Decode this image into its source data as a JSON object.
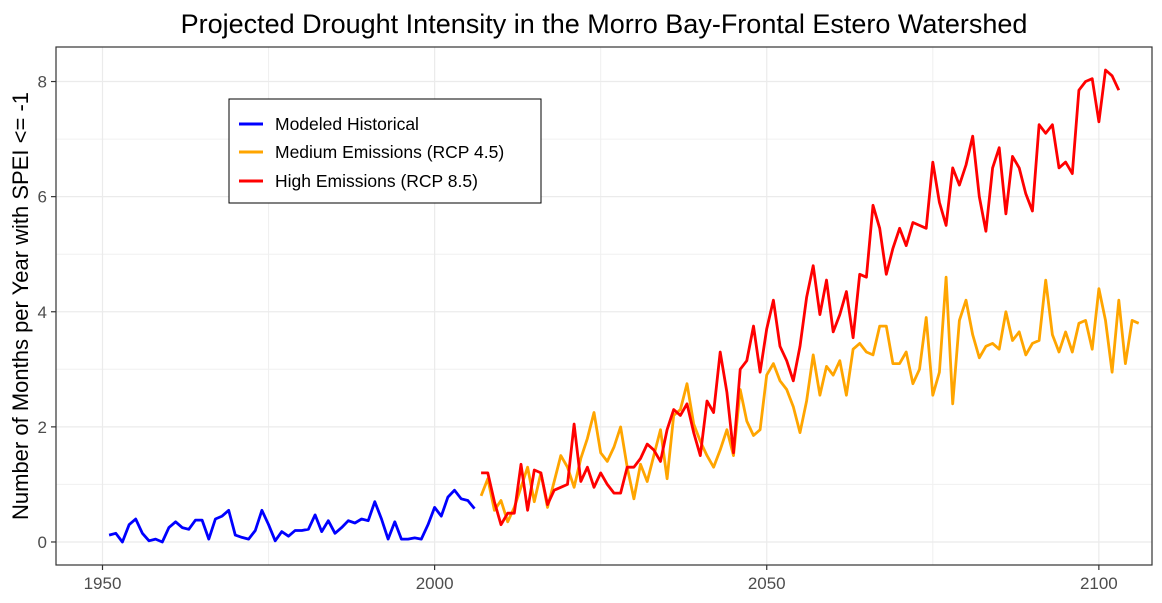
{
  "chart_data": {
    "type": "line",
    "title": "Projected Drought Intensity in the Morro Bay-Frontal Estero Watershed",
    "xlabel": "",
    "ylabel": "Number of Months per Year with SPEI <= -1",
    "xlim": [
      1943,
      2108
    ],
    "ylim": [
      -0.4,
      8.6
    ],
    "x_ticks": [
      1950,
      2000,
      2050,
      2100
    ],
    "y_ticks": [
      0,
      2,
      4,
      6,
      8
    ],
    "grid": true,
    "legend_position": "top-left",
    "series": [
      {
        "name": "Modeled Historical",
        "color": "#0000ff",
        "x_start": 1951,
        "values": [
          0.12,
          0.15,
          0.0,
          0.3,
          0.4,
          0.15,
          0.02,
          0.05,
          0.0,
          0.25,
          0.35,
          0.25,
          0.22,
          0.38,
          0.38,
          0.05,
          0.4,
          0.45,
          0.55,
          0.12,
          0.08,
          0.05,
          0.2,
          0.55,
          0.3,
          0.02,
          0.18,
          0.1,
          0.2,
          0.2,
          0.22,
          0.47,
          0.18,
          0.37,
          0.15,
          0.25,
          0.37,
          0.33,
          0.4,
          0.37,
          0.7,
          0.4,
          0.05,
          0.35,
          0.05,
          0.05,
          0.07,
          0.05,
          0.3,
          0.6,
          0.45,
          0.78,
          0.9,
          0.75,
          0.72,
          0.58
        ]
      },
      {
        "name": "Medium Emissions (RCP 4.5)",
        "color": "#ffa500",
        "x_start": 2007,
        "values": [
          0.8,
          1.1,
          0.55,
          0.72,
          0.35,
          0.6,
          0.95,
          1.3,
          0.7,
          1.2,
          0.6,
          1.05,
          1.5,
          1.3,
          0.95,
          1.45,
          1.8,
          2.25,
          1.55,
          1.4,
          1.65,
          2.0,
          1.3,
          0.75,
          1.35,
          1.05,
          1.5,
          1.95,
          1.1,
          2.2,
          2.3,
          2.75,
          2.05,
          1.75,
          1.5,
          1.3,
          1.6,
          1.95,
          1.5,
          2.65,
          2.1,
          1.85,
          1.95,
          2.9,
          3.1,
          2.8,
          2.65,
          2.35,
          1.9,
          2.45,
          3.25,
          2.55,
          3.05,
          2.9,
          3.15,
          2.55,
          3.35,
          3.45,
          3.3,
          3.25,
          3.75,
          3.75,
          3.1,
          3.1,
          3.3,
          2.75,
          3.0,
          3.9,
          2.55,
          2.95,
          4.6,
          2.4,
          3.85,
          4.2,
          3.6,
          3.2,
          3.4,
          3.45,
          3.35,
          4.0,
          3.5,
          3.65,
          3.25,
          3.45,
          3.5,
          4.55,
          3.6,
          3.3,
          3.65,
          3.3,
          3.8,
          3.85,
          3.35,
          4.4,
          3.85,
          2.95,
          4.2,
          3.1,
          3.85,
          3.8
        ]
      },
      {
        "name": "High Emissions (RCP 8.5)",
        "color": "#ff0000",
        "x_start": 2007,
        "values": [
          1.2,
          1.2,
          0.7,
          0.3,
          0.5,
          0.5,
          1.35,
          0.55,
          1.25,
          1.2,
          0.65,
          0.9,
          0.95,
          1.0,
          2.05,
          1.05,
          1.3,
          0.95,
          1.2,
          1.0,
          0.85,
          0.85,
          1.3,
          1.3,
          1.45,
          1.7,
          1.6,
          1.4,
          1.95,
          2.3,
          2.2,
          2.4,
          1.9,
          1.5,
          2.45,
          2.25,
          3.3,
          2.6,
          1.55,
          3.0,
          3.15,
          3.75,
          2.95,
          3.7,
          4.2,
          3.4,
          3.15,
          2.8,
          3.4,
          4.25,
          4.8,
          3.95,
          4.55,
          3.65,
          3.95,
          4.35,
          3.55,
          4.65,
          4.6,
          5.85,
          5.45,
          4.65,
          5.1,
          5.45,
          5.15,
          5.55,
          5.5,
          5.45,
          6.6,
          5.9,
          5.5,
          6.5,
          6.2,
          6.55,
          7.05,
          6.0,
          5.4,
          6.5,
          6.85,
          5.7,
          6.7,
          6.5,
          6.05,
          5.75,
          7.25,
          7.1,
          7.25,
          6.5,
          6.6,
          6.4,
          7.85,
          8.0,
          8.05,
          7.3,
          8.2,
          8.1,
          7.85
        ]
      }
    ]
  }
}
